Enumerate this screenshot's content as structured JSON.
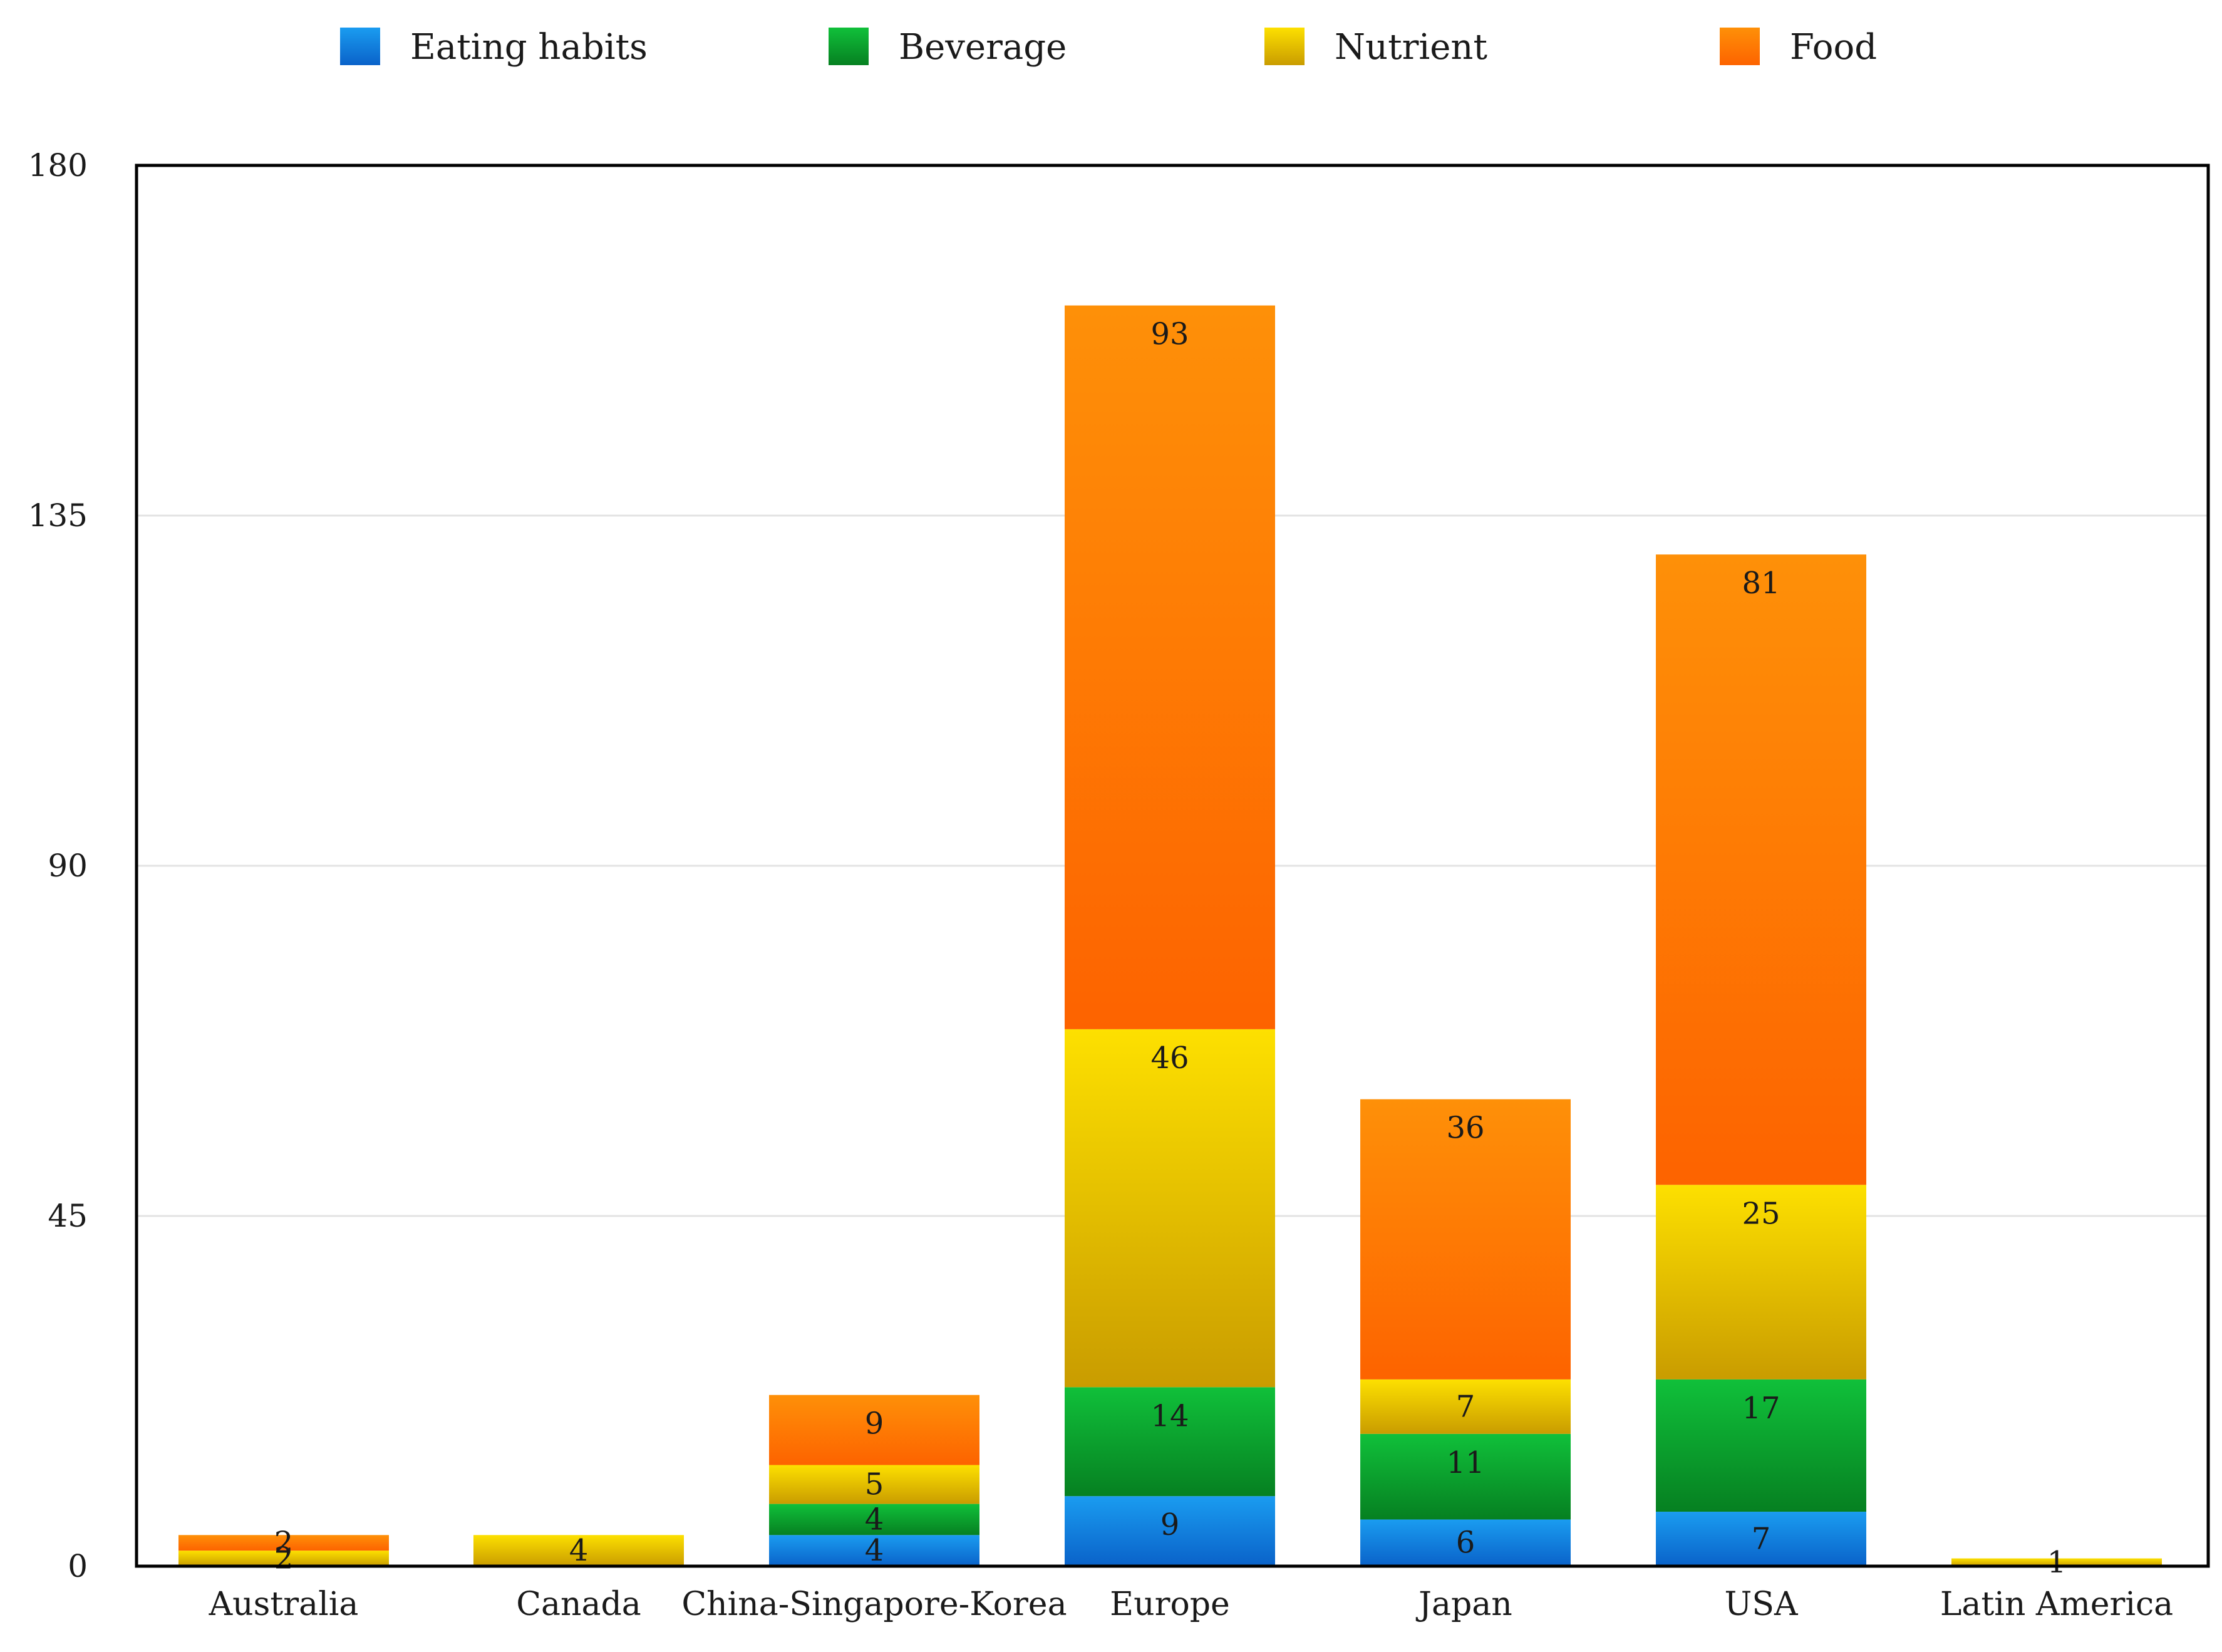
{
  "chart_data": {
    "type": "bar",
    "stacked": true,
    "title": "",
    "xlabel": "",
    "ylabel": "",
    "ylim": [
      0,
      180
    ],
    "yticks": [
      0,
      45,
      90,
      135,
      180
    ],
    "grid": true,
    "legend_position": "top",
    "categories": [
      "Australia",
      "Canada",
      "China-Singapore-Korea",
      "Europe",
      "Japan",
      "USA",
      "Latin America"
    ],
    "series": [
      {
        "name": "Eating habits",
        "color_top": "#1a9cf0",
        "color_bottom": "#0a62c9",
        "values": [
          0,
          0,
          4,
          9,
          6,
          7,
          0
        ],
        "labels": [
          "",
          "",
          "4",
          "9",
          "6",
          "7",
          ""
        ]
      },
      {
        "name": "Beverage",
        "color_top": "#10c03a",
        "color_bottom": "#068021",
        "values": [
          0,
          0,
          4,
          14,
          11,
          17,
          0
        ],
        "labels": [
          "",
          "",
          "4",
          "14",
          "11",
          "17",
          ""
        ]
      },
      {
        "name": "Nutrient",
        "color_top": "#fde000",
        "color_bottom": "#c99c00",
        "values": [
          2,
          4,
          5,
          46,
          7,
          25,
          1
        ],
        "labels": [
          "2",
          "4",
          "5",
          "46",
          "7",
          "25",
          "1"
        ]
      },
      {
        "name": "Food",
        "color_top": "#fe9008",
        "color_bottom": "#fd6300",
        "values": [
          2,
          0,
          9,
          93,
          36,
          81,
          0
        ],
        "labels": [
          "2",
          "",
          "9",
          "93",
          "36",
          "81",
          ""
        ]
      }
    ]
  }
}
